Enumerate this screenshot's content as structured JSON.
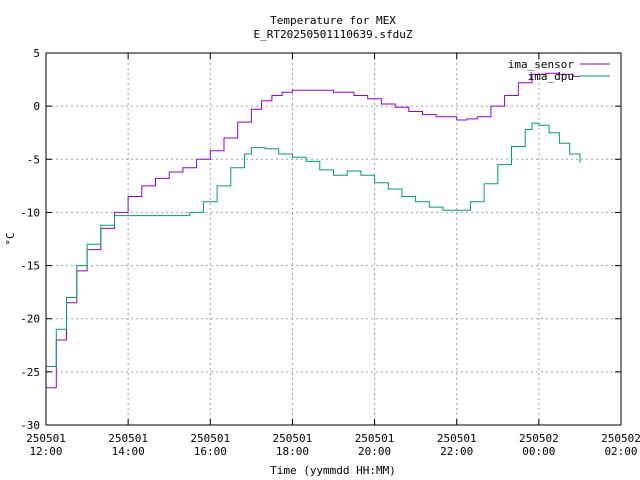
{
  "chart_data": {
    "type": "line",
    "title": "Temperature for MEX",
    "subtitle": "E_RT20250501110639.sfduZ",
    "xlabel": "Time (yymmdd HH:MM)",
    "ylabel": "°C",
    "xlim": [
      "2025-05-01 12:00",
      "2025-05-02 02:00"
    ],
    "ylim": [
      -30,
      5
    ],
    "x_ticks": [
      {
        "time": "2025-05-01 12:00",
        "line1": "250501",
        "line2": "12:00"
      },
      {
        "time": "2025-05-01 14:00",
        "line1": "250501",
        "line2": "14:00"
      },
      {
        "time": "2025-05-01 16:00",
        "line1": "250501",
        "line2": "16:00"
      },
      {
        "time": "2025-05-01 18:00",
        "line1": "250501",
        "line2": "18:00"
      },
      {
        "time": "2025-05-01 20:00",
        "line1": "250501",
        "line2": "20:00"
      },
      {
        "time": "2025-05-01 22:00",
        "line1": "250501",
        "line2": "22:00"
      },
      {
        "time": "2025-05-02 00:00",
        "line1": "250502",
        "line2": "00:00"
      },
      {
        "time": "2025-05-02 02:00",
        "line1": "250502",
        "line2": "02:00"
      }
    ],
    "y_ticks": [
      5,
      0,
      -5,
      -10,
      -15,
      -20,
      -25,
      -30
    ],
    "grid": true,
    "legend_position": "top-right",
    "series": [
      {
        "name": "ima_sensor",
        "color": "#9400d3",
        "points": [
          [
            "2025-05-01 12:00",
            -26.5
          ],
          [
            "2025-05-01 12:15",
            -22.0
          ],
          [
            "2025-05-01 12:30",
            -18.5
          ],
          [
            "2025-05-01 12:45",
            -15.5
          ],
          [
            "2025-05-01 13:00",
            -13.5
          ],
          [
            "2025-05-01 13:20",
            -11.5
          ],
          [
            "2025-05-01 13:40",
            -10.0
          ],
          [
            "2025-05-01 14:00",
            -8.5
          ],
          [
            "2025-05-01 14:20",
            -7.5
          ],
          [
            "2025-05-01 14:40",
            -6.8
          ],
          [
            "2025-05-01 15:00",
            -6.2
          ],
          [
            "2025-05-01 15:20",
            -5.8
          ],
          [
            "2025-05-01 15:40",
            -5.0
          ],
          [
            "2025-05-01 16:00",
            -4.2
          ],
          [
            "2025-05-01 16:20",
            -3.0
          ],
          [
            "2025-05-01 16:40",
            -1.5
          ],
          [
            "2025-05-01 17:00",
            -0.3
          ],
          [
            "2025-05-01 17:15",
            0.5
          ],
          [
            "2025-05-01 17:30",
            1.0
          ],
          [
            "2025-05-01 17:45",
            1.3
          ],
          [
            "2025-05-01 18:00",
            1.5
          ],
          [
            "2025-05-01 18:30",
            1.5
          ],
          [
            "2025-05-01 19:00",
            1.3
          ],
          [
            "2025-05-01 19:30",
            1.0
          ],
          [
            "2025-05-01 19:50",
            0.7
          ],
          [
            "2025-05-01 20:10",
            0.2
          ],
          [
            "2025-05-01 20:30",
            -0.1
          ],
          [
            "2025-05-01 20:50",
            -0.5
          ],
          [
            "2025-05-01 21:10",
            -0.8
          ],
          [
            "2025-05-01 21:30",
            -1.0
          ],
          [
            "2025-05-01 22:00",
            -1.3
          ],
          [
            "2025-05-01 22:15",
            -1.2
          ],
          [
            "2025-05-01 22:30",
            -1.0
          ],
          [
            "2025-05-01 22:50",
            0.0
          ],
          [
            "2025-05-01 23:10",
            1.0
          ],
          [
            "2025-05-01 23:30",
            2.2
          ],
          [
            "2025-05-01 23:50",
            3.0
          ],
          [
            "2025-05-02 00:10",
            3.1
          ],
          [
            "2025-05-02 00:30",
            3.0
          ],
          [
            "2025-05-02 00:50",
            2.8
          ],
          [
            "2025-05-02 01:00",
            2.8
          ]
        ]
      },
      {
        "name": "ima_dpu",
        "color": "#009e73",
        "points": [
          [
            "2025-05-01 12:00",
            -24.5
          ],
          [
            "2025-05-01 12:15",
            -21.0
          ],
          [
            "2025-05-01 12:30",
            -18.0
          ],
          [
            "2025-05-01 12:45",
            -15.0
          ],
          [
            "2025-05-01 13:00",
            -13.0
          ],
          [
            "2025-05-01 13:20",
            -11.2
          ],
          [
            "2025-05-01 13:40",
            -10.3
          ],
          [
            "2025-05-01 14:00",
            -10.3
          ],
          [
            "2025-05-01 14:30",
            -10.3
          ],
          [
            "2025-05-01 15:00",
            -10.3
          ],
          [
            "2025-05-01 15:30",
            -10.0
          ],
          [
            "2025-05-01 15:50",
            -9.0
          ],
          [
            "2025-05-01 16:10",
            -7.5
          ],
          [
            "2025-05-01 16:30",
            -5.8
          ],
          [
            "2025-05-01 16:50",
            -4.5
          ],
          [
            "2025-05-01 17:00",
            -3.9
          ],
          [
            "2025-05-01 17:20",
            -4.0
          ],
          [
            "2025-05-01 17:40",
            -4.5
          ],
          [
            "2025-05-01 18:00",
            -4.8
          ],
          [
            "2025-05-01 18:20",
            -5.2
          ],
          [
            "2025-05-01 18:40",
            -6.0
          ],
          [
            "2025-05-01 19:00",
            -6.5
          ],
          [
            "2025-05-01 19:20",
            -6.1
          ],
          [
            "2025-05-01 19:40",
            -6.5
          ],
          [
            "2025-05-01 20:00",
            -7.2
          ],
          [
            "2025-05-01 20:20",
            -7.8
          ],
          [
            "2025-05-01 20:40",
            -8.5
          ],
          [
            "2025-05-01 21:00",
            -9.0
          ],
          [
            "2025-05-01 21:20",
            -9.5
          ],
          [
            "2025-05-01 21:40",
            -9.8
          ],
          [
            "2025-05-01 22:00",
            -9.8
          ],
          [
            "2025-05-01 22:20",
            -9.0
          ],
          [
            "2025-05-01 22:40",
            -7.3
          ],
          [
            "2025-05-01 23:00",
            -5.5
          ],
          [
            "2025-05-01 23:20",
            -3.8
          ],
          [
            "2025-05-01 23:40",
            -2.2
          ],
          [
            "2025-05-01 23:50",
            -1.6
          ],
          [
            "2025-05-02 00:00",
            -1.8
          ],
          [
            "2025-05-02 00:15",
            -2.5
          ],
          [
            "2025-05-02 00:30",
            -3.5
          ],
          [
            "2025-05-02 00:45",
            -4.5
          ],
          [
            "2025-05-02 01:00",
            -5.3
          ]
        ]
      }
    ]
  }
}
